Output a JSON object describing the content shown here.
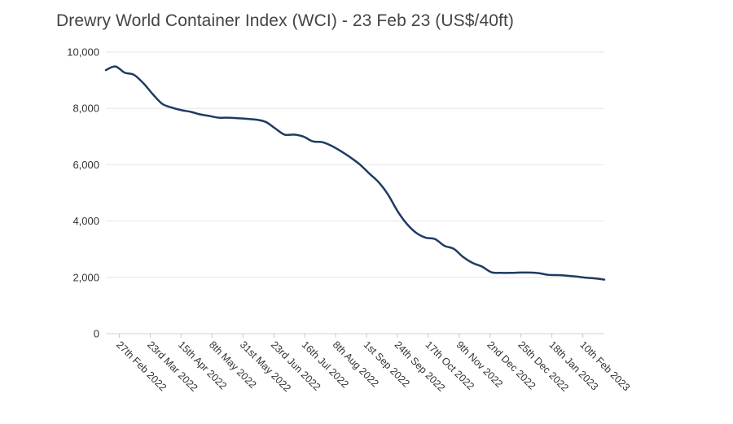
{
  "chart_data": {
    "type": "line",
    "title": "Drewry World Container Index (WCI) - 23 Feb 23 (US$/40ft)",
    "xlabel": "",
    "ylabel": "",
    "ylim": [
      0,
      10000
    ],
    "yticks": [
      0,
      2000,
      4000,
      6000,
      8000,
      10000
    ],
    "ytick_labels": [
      "0",
      "2,000",
      "4,000",
      "6,000",
      "8,000",
      "10,000"
    ],
    "grid": true,
    "legend": "none",
    "line_color": "#1f3a63",
    "tick_labels": [
      "27th Feb 2022",
      "23rd Mar 2022",
      "15th Apr 2022",
      "8th May 2022",
      "31st May 2022",
      "23rd Jun 2022",
      "16th Jul 2022",
      "8th Aug 2022",
      "1st Sep 2022",
      "24th Sep 2022",
      "17th Oct 2022",
      "9th Nov 2022",
      "2nd Dec 2022",
      "25th Dec 2022",
      "18th Jan 2023",
      "10th Feb 2023"
    ],
    "x": [
      "2022-02-17",
      "2022-02-24",
      "2022-03-03",
      "2022-03-10",
      "2022-03-17",
      "2022-03-24",
      "2022-03-31",
      "2022-04-07",
      "2022-04-14",
      "2022-04-21",
      "2022-04-28",
      "2022-05-05",
      "2022-05-12",
      "2022-05-19",
      "2022-05-26",
      "2022-06-02",
      "2022-06-09",
      "2022-06-16",
      "2022-06-23",
      "2022-06-30",
      "2022-07-07",
      "2022-07-14",
      "2022-07-21",
      "2022-07-28",
      "2022-08-04",
      "2022-08-11",
      "2022-08-18",
      "2022-08-25",
      "2022-09-01",
      "2022-09-08",
      "2022-09-15",
      "2022-09-22",
      "2022-09-29",
      "2022-10-06",
      "2022-10-13",
      "2022-10-20",
      "2022-10-27",
      "2022-11-03",
      "2022-11-10",
      "2022-11-17",
      "2022-11-24",
      "2022-12-01",
      "2022-12-08",
      "2022-12-15",
      "2022-12-22",
      "2022-12-29",
      "2023-01-05",
      "2023-01-12",
      "2023-01-19",
      "2023-01-26",
      "2023-02-02",
      "2023-02-09",
      "2023-02-16",
      "2023-02-23"
    ],
    "series": [
      {
        "values": [
          9360,
          9490,
          9270,
          9190,
          8890,
          8500,
          8160,
          8030,
          7940,
          7880,
          7790,
          7730,
          7670,
          7670,
          7650,
          7630,
          7600,
          7520,
          7290,
          7070,
          7070,
          7000,
          6830,
          6800,
          6670,
          6480,
          6260,
          6010,
          5690,
          5380,
          4940,
          4360,
          3900,
          3580,
          3410,
          3360,
          3120,
          3010,
          2720,
          2510,
          2380,
          2180,
          2160,
          2160,
          2170,
          2170,
          2150,
          2090,
          2080,
          2060,
          2030,
          1990,
          1960,
          1920
        ]
      }
    ]
  }
}
